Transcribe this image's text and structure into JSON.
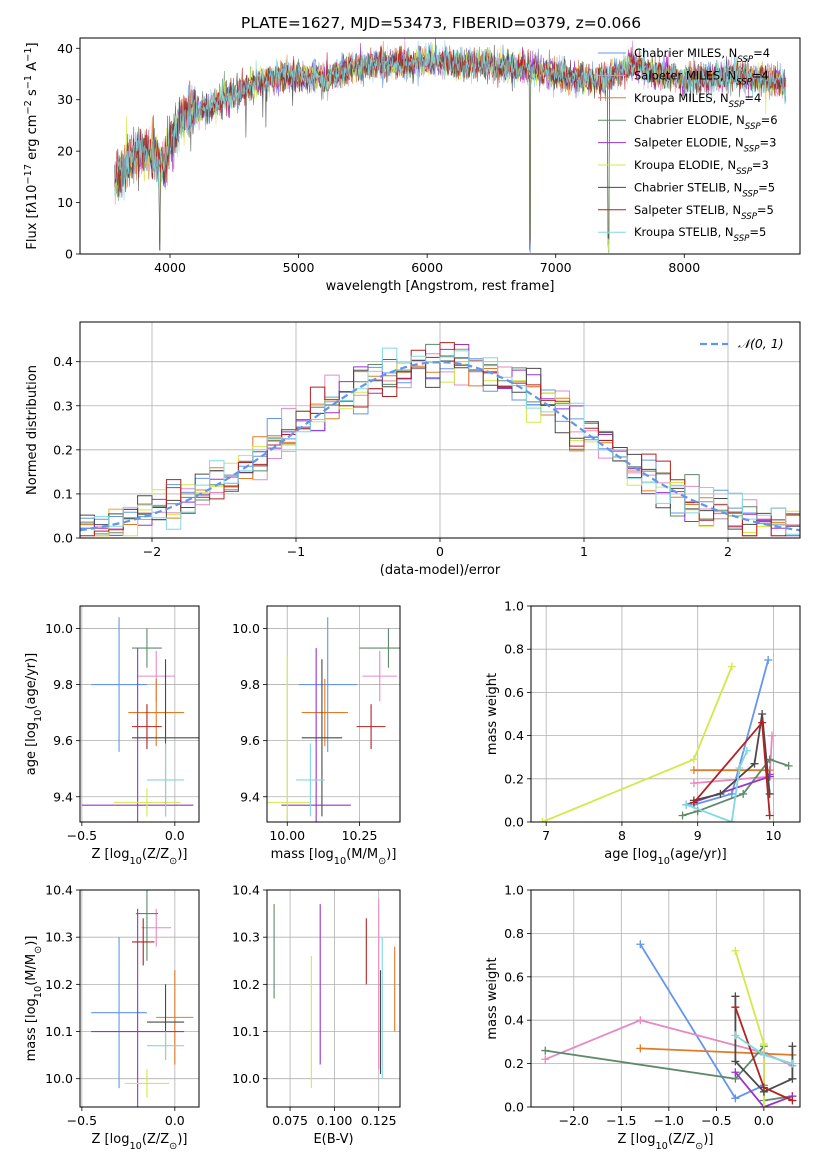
{
  "figure": {
    "title": "PLATE=1627, MJD=53473, FIBERID=0379, z=0.066"
  },
  "series_legend": [
    {
      "label": "Chabrier MILES, N$_{SSP}$=4",
      "base": "Chabrier MILES, N",
      "sub": "SSP",
      "tail": "=4",
      "color": "#6495ed"
    },
    {
      "label": "Salpeter MILES, N$_{SSP}$=4",
      "base": "Salpeter MILES, N",
      "sub": "SSP",
      "tail": "=4",
      "color": "#e78ac3"
    },
    {
      "label": "Kroupa MILES, N$_{SSP}$=4",
      "base": "Kroupa MILES, N",
      "sub": "SSP",
      "tail": "=4",
      "color": "#e07b28"
    },
    {
      "label": "Chabrier ELODIE, N$_{SSP}$=6",
      "base": "Chabrier ELODIE, N",
      "sub": "SSP",
      "tail": "=6",
      "color": "#5f8a6a"
    },
    {
      "label": "Salpeter ELODIE, N$_{SSP}$=3",
      "base": "Salpeter ELODIE, N",
      "sub": "SSP",
      "tail": "=3",
      "color": "#9a32cd"
    },
    {
      "label": "Kroupa ELODIE, N$_{SSP}$=3",
      "base": "Kroupa ELODIE, N",
      "sub": "SSP",
      "tail": "=3",
      "color": "#d4e84a"
    },
    {
      "label": "Chabrier STELIB, N$_{SSP}$=5",
      "base": "Chabrier STELIB, N",
      "sub": "SSP",
      "tail": "=5",
      "color": "#4a4a4a"
    },
    {
      "label": "Salpeter STELIB, N$_{SSP}$=5",
      "base": "Salpeter STELIB, N",
      "sub": "SSP",
      "tail": "=5",
      "color": "#b22222"
    },
    {
      "label": "Kroupa STELIB, N$_{SSP}$=5",
      "base": "Kroupa STELIB, N",
      "sub": "SSP",
      "tail": "=5",
      "color": "#80d8e0"
    }
  ],
  "chart_data": [
    {
      "type": "line",
      "id": "spectrum",
      "xlabel": "wavelength [Angstrom, rest frame]",
      "ylabel": "Flux [f$_\\lambda$10$^{-17}$ erg cm$^{-2}$ s$^{-1}$ A$^{-1}$]",
      "xlim": [
        3300,
        8900
      ],
      "ylim": [
        0,
        42
      ],
      "xticks": [
        4000,
        5000,
        6000,
        7000,
        8000
      ],
      "yticks": [
        0,
        10,
        20,
        30,
        40
      ],
      "legend_position": "top-right",
      "grid": false,
      "continuum": [
        [
          3570,
          14
        ],
        [
          3650,
          17
        ],
        [
          3720,
          19.5
        ],
        [
          3800,
          20
        ],
        [
          3880,
          19
        ],
        [
          3950,
          17
        ],
        [
          4000,
          22
        ],
        [
          4100,
          27
        ],
        [
          4200,
          28
        ],
        [
          4300,
          28
        ],
        [
          4400,
          30
        ],
        [
          4500,
          31
        ],
        [
          4600,
          32
        ],
        [
          4700,
          33.5
        ],
        [
          4800,
          34
        ],
        [
          4900,
          35
        ],
        [
          5000,
          34.5
        ],
        [
          5200,
          34
        ],
        [
          5400,
          36
        ],
        [
          5600,
          37
        ],
        [
          5800,
          37
        ],
        [
          6000,
          37.5
        ],
        [
          6200,
          37
        ],
        [
          6400,
          37
        ],
        [
          6600,
          36.5
        ],
        [
          6800,
          36
        ],
        [
          7000,
          35
        ],
        [
          7200,
          34
        ],
        [
          7400,
          34
        ],
        [
          7600,
          37
        ],
        [
          7800,
          35
        ],
        [
          8000,
          34
        ],
        [
          8200,
          34
        ],
        [
          8400,
          35
        ],
        [
          8600,
          34
        ],
        [
          8700,
          33.5
        ],
        [
          8790,
          33
        ]
      ],
      "deep_absorptions": [
        [
          3920,
          0
        ],
        [
          4100,
          24
        ],
        [
          4340,
          27
        ],
        [
          4860,
          32
        ],
        [
          5890,
          33
        ],
        [
          6560,
          33
        ],
        [
          6800,
          0
        ],
        [
          7410,
          0
        ],
        [
          7630,
          33
        ],
        [
          8500,
          32
        ],
        [
          8540,
          32
        ],
        [
          8660,
          31
        ]
      ]
    },
    {
      "type": "histogram",
      "id": "residuals",
      "xlabel": "(data-model)/error",
      "ylabel": "Normed distribution",
      "xlim": [
        -2.5,
        2.5
      ],
      "ylim": [
        0,
        0.49
      ],
      "xticks": [
        -2,
        -1,
        0,
        1,
        2
      ],
      "yticks": [
        0.0,
        0.1,
        0.2,
        0.3,
        0.4
      ],
      "grid": true,
      "bin_width": 0.1,
      "reference_curve": {
        "label": "$\\mathcal{N}(0,1)$",
        "display": "𝒩(0, 1)",
        "mean": 0,
        "sigma": 1,
        "color": "#6495ed"
      },
      "legend_position": "top-right"
    },
    {
      "type": "scatter",
      "id": "age_vs_Z",
      "xlabel": "Z [log$_{10}$(Z/Z$_\\odot$)]",
      "ylabel": "age  [log$_{10}$(age/yr)]",
      "xlim": [
        -0.51,
        0.13
      ],
      "ylim": [
        9.31,
        10.08
      ],
      "xticks": [
        -0.5,
        0.0
      ],
      "yticks": [
        9.4,
        9.6,
        9.8,
        10.0
      ],
      "grid": true,
      "points": [
        {
          "series": "Chabrier MILES",
          "x": -0.3,
          "y": 9.8,
          "xerr": 0.15,
          "yerr": 0.24
        },
        {
          "series": "Salpeter MILES",
          "x": -0.1,
          "y": 9.83,
          "xerr": 0.1,
          "yerr": 0.09
        },
        {
          "series": "Kroupa MILES",
          "x": -0.1,
          "y": 9.7,
          "xerr": 0.15,
          "yerr": 0.12
        },
        {
          "series": "Chabrier ELODIE",
          "x": -0.15,
          "y": 9.93,
          "xerr": 0.08,
          "yerr": 0.07
        },
        {
          "series": "Salpeter ELODIE",
          "x": -0.2,
          "y": 9.37,
          "xerr": 0.3,
          "yerr": 0.56
        },
        {
          "series": "Kroupa ELODIE",
          "x": -0.15,
          "y": 9.38,
          "xerr": 0.18,
          "yerr": 0.05
        },
        {
          "series": "Chabrier STELIB",
          "x": -0.05,
          "y": 9.61,
          "xerr": 0.18,
          "yerr": 0.28
        },
        {
          "series": "Salpeter STELIB",
          "x": -0.15,
          "y": 9.65,
          "xerr": 0.08,
          "yerr": 0.08
        },
        {
          "series": "Kroupa STELIB",
          "x": -0.05,
          "y": 9.46,
          "xerr": 0.1,
          "yerr": 0.13
        }
      ]
    },
    {
      "type": "scatter",
      "id": "age_vs_mass",
      "xlabel": "mass [log$_{10}$(M/M$_\\odot$)]",
      "ylabel": "",
      "xlim": [
        9.93,
        10.39
      ],
      "ylim": [
        9.31,
        10.08
      ],
      "xticks": [
        10.0,
        10.25
      ],
      "yticks": [
        9.4,
        9.6,
        9.8,
        10.0
      ],
      "grid": true,
      "points": [
        {
          "series": "Chabrier MILES",
          "x": 10.14,
          "y": 9.8,
          "xerr": 0.1,
          "yerr": 0.24
        },
        {
          "series": "Salpeter MILES",
          "x": 10.32,
          "y": 9.83,
          "xerr": 0.06,
          "yerr": 0.09
        },
        {
          "series": "Kroupa MILES",
          "x": 10.13,
          "y": 9.7,
          "xerr": 0.08,
          "yerr": 0.12
        },
        {
          "series": "Chabrier ELODIE",
          "x": 10.35,
          "y": 9.93,
          "xerr": 0.1,
          "yerr": 0.07
        },
        {
          "series": "Salpeter ELODIE",
          "x": 10.1,
          "y": 9.37,
          "xerr": 0.12,
          "yerr": 0.56
        },
        {
          "series": "Kroupa ELODIE",
          "x": 10.0,
          "y": 9.38,
          "xerr": 0.08,
          "yerr": 0.52
        },
        {
          "series": "Chabrier STELIB",
          "x": 10.12,
          "y": 9.61,
          "xerr": 0.07,
          "yerr": 0.28
        },
        {
          "series": "Salpeter STELIB",
          "x": 10.29,
          "y": 9.65,
          "xerr": 0.05,
          "yerr": 0.08
        },
        {
          "series": "Kroupa STELIB",
          "x": 10.08,
          "y": 9.46,
          "xerr": 0.05,
          "yerr": 0.13
        }
      ]
    },
    {
      "type": "line",
      "id": "weight_vs_age",
      "xlabel": "age  [log$_{10}$(age/yr)]",
      "ylabel": "mass weight",
      "xlim": [
        6.8,
        10.35
      ],
      "ylim": [
        0,
        1.0
      ],
      "xticks": [
        7,
        8,
        9,
        10
      ],
      "yticks": [
        0.0,
        0.2,
        0.4,
        0.6,
        0.8,
        1.0
      ],
      "grid": true,
      "series": [
        {
          "name": "Chabrier MILES",
          "x": [
            8.95,
            9.45,
            9.93
          ],
          "y": [
            0.08,
            0.13,
            0.75
          ]
        },
        {
          "name": "Salpeter MILES",
          "x": [
            8.95,
            9.95,
            9.98
          ],
          "y": [
            0.18,
            0.21,
            0.4
          ]
        },
        {
          "name": "Kroupa MILES",
          "x": [
            8.95,
            9.55,
            9.95
          ],
          "y": [
            0.24,
            0.24,
            0.24
          ]
        },
        {
          "name": "Chabrier ELODIE",
          "x": [
            8.8,
            9.0,
            9.6,
            9.95,
            10.2
          ],
          "y": [
            0.03,
            0.05,
            0.13,
            0.29,
            0.26
          ]
        },
        {
          "name": "Salpeter ELODIE",
          "x": [
            8.85,
            9.95,
            9.95
          ],
          "y": [
            0.08,
            0.21,
            0.22
          ]
        },
        {
          "name": "Kroupa ELODIE",
          "x": [
            6.95,
            8.95,
            9.45
          ],
          "y": [
            0.0,
            0.29,
            0.72
          ]
        },
        {
          "name": "Chabrier STELIB",
          "x": [
            8.95,
            9.3,
            9.75,
            9.85,
            9.95
          ],
          "y": [
            0.1,
            0.13,
            0.27,
            0.5,
            0.13
          ]
        },
        {
          "name": "Salpeter STELIB",
          "x": [
            8.95,
            9.85,
            9.95
          ],
          "y": [
            0.09,
            0.46,
            0.03
          ]
        },
        {
          "name": "Kroupa STELIB",
          "x": [
            8.85,
            9.45,
            9.55,
            9.65
          ],
          "y": [
            0.08,
            0.0,
            0.25,
            0.33
          ]
        }
      ]
    },
    {
      "type": "scatter",
      "id": "mass_vs_Z",
      "xlabel": "Z [log$_{10}$(Z/Z$_\\odot$)]",
      "ylabel": "mass [log$_{10}$(M/M$_\\odot$)]",
      "xlim": [
        -0.51,
        0.13
      ],
      "ylim": [
        9.94,
        10.4
      ],
      "xticks": [
        -0.5,
        0.0
      ],
      "yticks": [
        10.0,
        10.1,
        10.2,
        10.3,
        10.4
      ],
      "grid": true,
      "points": [
        {
          "series": "Chabrier MILES",
          "x": -0.3,
          "y": 10.14,
          "xerr": 0.15,
          "yerr": 0.16
        },
        {
          "series": "Salpeter MILES",
          "x": -0.1,
          "y": 10.32,
          "xerr": 0.08,
          "yerr": 0.04
        },
        {
          "series": "Kroupa MILES",
          "x": 0.0,
          "y": 10.13,
          "xerr": 0.1,
          "yerr": 0.1
        },
        {
          "series": "Chabrier ELODIE",
          "x": -0.15,
          "y": 10.35,
          "xerr": 0.06,
          "yerr": 0.1
        },
        {
          "series": "Salpeter ELODIE",
          "x": -0.2,
          "y": 10.1,
          "xerr": 0.25,
          "yerr": 0.26
        },
        {
          "series": "Kroupa ELODIE",
          "x": -0.15,
          "y": 9.99,
          "xerr": 0.12,
          "yerr": 0.03
        },
        {
          "series": "Chabrier STELIB",
          "x": -0.05,
          "y": 10.12,
          "xerr": 0.1,
          "yerr": 0.08
        },
        {
          "series": "Salpeter STELIB",
          "x": -0.17,
          "y": 10.29,
          "xerr": 0.06,
          "yerr": 0.05
        },
        {
          "series": "Kroupa STELIB",
          "x": -0.05,
          "y": 10.07,
          "xerr": 0.1,
          "yerr": 0.03
        }
      ]
    },
    {
      "type": "scatter",
      "id": "mass_vs_EBV",
      "xlabel": "E(B-V)",
      "ylabel": "",
      "xlim": [
        0.062,
        0.137
      ],
      "ylim": [
        9.94,
        10.4
      ],
      "xticks": [
        0.075,
        0.1,
        0.125
      ],
      "xtick_labels": [
        "0.075",
        "0.100",
        "0.125"
      ],
      "yticks": [
        10.0,
        10.1,
        10.2,
        10.3,
        10.4
      ],
      "grid": true,
      "points": [
        {
          "series": "Chabrier ELODIE",
          "x": 0.066,
          "y": 10.27,
          "yerr": 0.1
        },
        {
          "series": "Kroupa ELODIE",
          "x": 0.087,
          "y": 10.12,
          "yerr": 0.14
        },
        {
          "series": "Salpeter ELODIE",
          "x": 0.092,
          "y": 10.2,
          "yerr": 0.17
        },
        {
          "series": "Salpeter STELIB",
          "x": 0.118,
          "y": 10.27,
          "yerr": 0.07
        },
        {
          "series": "Salpeter MILES",
          "x": 0.125,
          "y": 10.2,
          "yerr": 0.18
        },
        {
          "series": "Chabrier STELIB",
          "x": 0.126,
          "y": 10.12,
          "yerr": 0.11
        },
        {
          "series": "Kroupa STELIB",
          "x": 0.127,
          "y": 10.15,
          "yerr": 0.15
        },
        {
          "series": "Kroupa MILES",
          "x": 0.134,
          "y": 10.19,
          "yerr": 0.09
        }
      ]
    },
    {
      "type": "line",
      "id": "weight_vs_Z",
      "xlabel": "Z [log$_{10}$(Z/Z$_\\odot$)]",
      "ylabel": "mass weight",
      "xlim": [
        -2.45,
        0.38
      ],
      "ylim": [
        0,
        1.0
      ],
      "xticks": [
        -2.0,
        -1.5,
        -1.0,
        -0.5,
        0.0
      ],
      "yticks": [
        0.0,
        0.2,
        0.4,
        0.6,
        0.8,
        1.0
      ],
      "grid": true,
      "series": [
        {
          "name": "Chabrier MILES",
          "x": [
            -1.3,
            -0.3,
            0.0
          ],
          "y": [
            0.75,
            0.04,
            0.1
          ]
        },
        {
          "name": "Salpeter MILES",
          "x": [
            -2.3,
            -1.3,
            0.0,
            0.3
          ],
          "y": [
            0.22,
            0.4,
            0.25,
            0.19
          ]
        },
        {
          "name": "Kroupa MILES",
          "x": [
            -1.3,
            0.3
          ],
          "y": [
            0.27,
            0.24
          ]
        },
        {
          "name": "Chabrier ELODIE",
          "x": [
            -2.3,
            -0.3,
            0.0,
            0.0,
            0.3
          ],
          "y": [
            0.26,
            0.13,
            0.28,
            0.03,
            0.05
          ]
        },
        {
          "name": "Salpeter ELODIE",
          "x": [
            -0.3,
            0.0,
            0.3
          ],
          "y": [
            0.16,
            0.0,
            0.05
          ]
        },
        {
          "name": "Kroupa ELODIE",
          "x": [
            -0.3,
            0.0,
            0.0
          ],
          "y": [
            0.72,
            0.29,
            0.0
          ]
        },
        {
          "name": "Chabrier STELIB",
          "x": [
            -0.3,
            -0.3,
            0.0,
            0.3,
            0.3
          ],
          "y": [
            0.51,
            0.21,
            0.07,
            0.13,
            0.28
          ]
        },
        {
          "name": "Salpeter STELIB",
          "x": [
            -0.3,
            0.0,
            0.3
          ],
          "y": [
            0.46,
            0.09,
            0.03
          ]
        },
        {
          "name": "Kroupa STELIB",
          "x": [
            -0.3,
            0.0,
            0.3
          ],
          "y": [
            0.33,
            0.24,
            0.2
          ]
        }
      ]
    }
  ]
}
